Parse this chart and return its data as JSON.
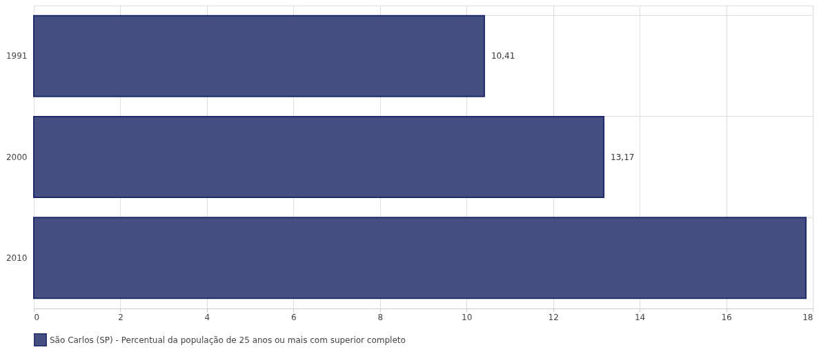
{
  "chart_data": {
    "type": "bar",
    "orientation": "horizontal",
    "categories": [
      "1991",
      "2000",
      "2010"
    ],
    "series": [
      {
        "name": "São Carlos (SP) - Percentual da população de 25 anos ou mais com superior completo",
        "color": "#464f82",
        "values": [
          10.41,
          13.17,
          17.84
        ]
      }
    ],
    "value_labels": [
      "10,41",
      "13,17",
      null
    ],
    "xlim": [
      0,
      18
    ],
    "xticks": [
      0,
      2,
      4,
      6,
      8,
      10,
      12,
      14,
      16,
      18
    ],
    "grid": true,
    "legend": "bottom"
  }
}
